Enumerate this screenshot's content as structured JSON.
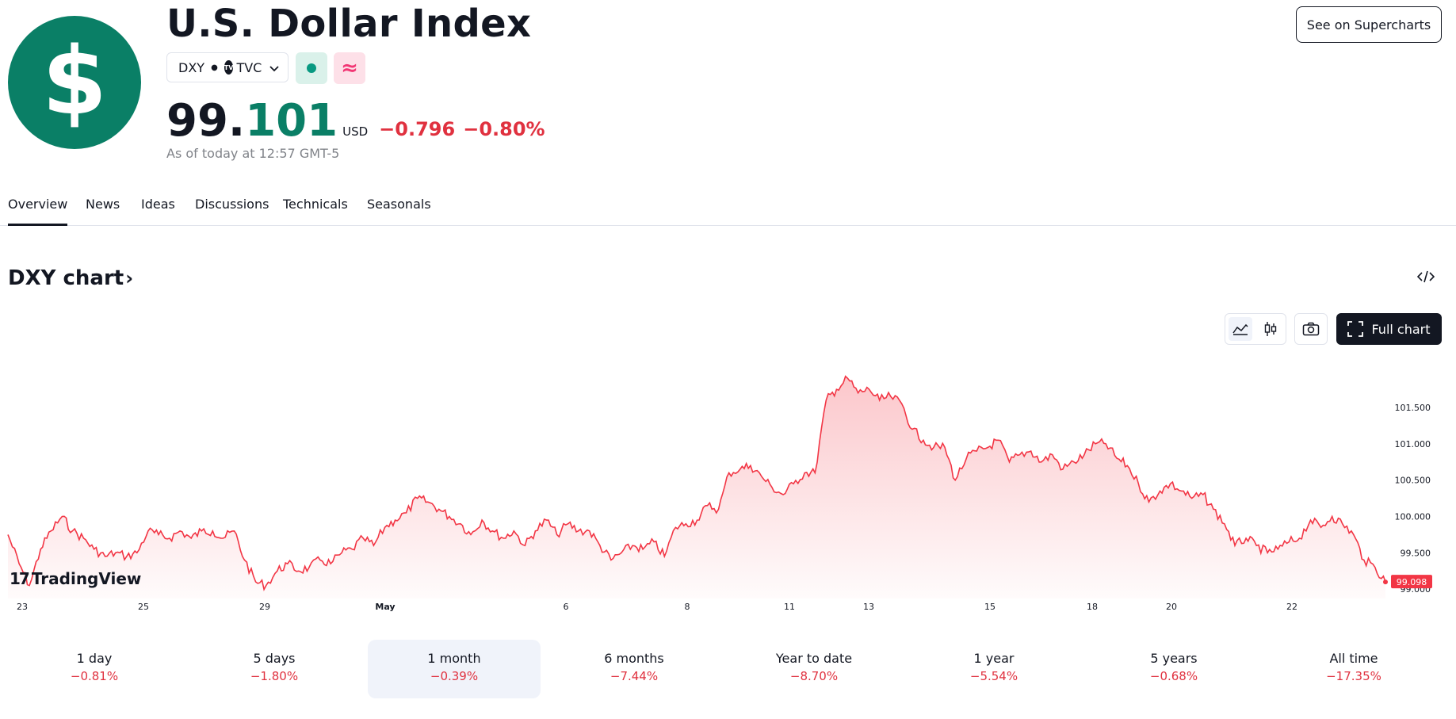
{
  "header": {
    "logo_glyph": "$",
    "title": "U.S. Dollar Index",
    "symbol": "DXY",
    "exchange_logo": "TV",
    "exchange": "TVC",
    "pink_badge": "≈",
    "price_int": "99.",
    "price_dec": "101",
    "currency": "USD",
    "change": "−0.796",
    "change_pct": "−0.80%",
    "as_of": "As of today at 12:57 GMT-5",
    "supercharts_label": "See on Supercharts"
  },
  "tabs": [
    {
      "label": "Overview"
    },
    {
      "label": "News"
    },
    {
      "label": "Ideas"
    },
    {
      "label": "Discussions"
    },
    {
      "label": "Technicals"
    },
    {
      "label": "Seasonals"
    }
  ],
  "chart_section": {
    "title": "DXY chart",
    "full_chart_label": "Full chart",
    "watermark": "TradingView",
    "watermark_logo": "17"
  },
  "chart_data": {
    "type": "area",
    "series": [
      {
        "last_value": "99.098",
        "points": [
          [
            0,
            99.75
          ],
          [
            14,
            99.35
          ],
          [
            27,
            99.05
          ],
          [
            41,
            99.55
          ],
          [
            54,
            99.8
          ],
          [
            68,
            100.0
          ],
          [
            81,
            99.8
          ],
          [
            95,
            99.7
          ],
          [
            108,
            99.55
          ],
          [
            122,
            99.45
          ],
          [
            135,
            99.5
          ],
          [
            149,
            99.45
          ],
          [
            162,
            99.5
          ],
          [
            176,
            99.8
          ],
          [
            189,
            99.75
          ],
          [
            203,
            99.7
          ],
          [
            216,
            99.8
          ],
          [
            230,
            99.7
          ],
          [
            243,
            99.8
          ],
          [
            257,
            99.8
          ],
          [
            270,
            99.7
          ],
          [
            284,
            99.8
          ],
          [
            297,
            99.4
          ],
          [
            311,
            99.1
          ],
          [
            324,
            99.05
          ],
          [
            338,
            99.25
          ],
          [
            351,
            99.35
          ],
          [
            365,
            99.25
          ],
          [
            378,
            99.3
          ],
          [
            392,
            99.4
          ],
          [
            405,
            99.35
          ],
          [
            419,
            99.5
          ],
          [
            432,
            99.55
          ],
          [
            446,
            99.7
          ],
          [
            459,
            99.6
          ],
          [
            473,
            99.85
          ],
          [
            486,
            99.95
          ],
          [
            500,
            100.05
          ],
          [
            514,
            100.25
          ],
          [
            527,
            100.2
          ],
          [
            541,
            100.1
          ],
          [
            554,
            100.0
          ],
          [
            568,
            99.9
          ],
          [
            581,
            99.75
          ],
          [
            595,
            99.95
          ],
          [
            608,
            99.8
          ],
          [
            622,
            99.7
          ],
          [
            635,
            99.8
          ],
          [
            649,
            99.6
          ],
          [
            662,
            99.8
          ],
          [
            676,
            99.95
          ],
          [
            689,
            99.75
          ],
          [
            703,
            99.9
          ],
          [
            716,
            99.8
          ],
          [
            730,
            99.8
          ],
          [
            743,
            99.6
          ],
          [
            757,
            99.4
          ],
          [
            770,
            99.5
          ],
          [
            784,
            99.6
          ],
          [
            797,
            99.55
          ],
          [
            811,
            99.65
          ],
          [
            824,
            99.45
          ],
          [
            838,
            99.85
          ],
          [
            851,
            99.9
          ],
          [
            865,
            99.95
          ],
          [
            878,
            100.15
          ],
          [
            892,
            100.1
          ],
          [
            905,
            100.6
          ],
          [
            919,
            100.65
          ],
          [
            932,
            100.7
          ],
          [
            946,
            100.55
          ],
          [
            959,
            100.4
          ],
          [
            973,
            100.3
          ],
          [
            986,
            100.45
          ],
          [
            1000,
            100.6
          ],
          [
            1013,
            100.6
          ],
          [
            1027,
            101.6
          ],
          [
            1040,
            101.75
          ],
          [
            1054,
            101.9
          ],
          [
            1067,
            101.7
          ],
          [
            1081,
            101.75
          ],
          [
            1094,
            101.6
          ],
          [
            1108,
            101.65
          ],
          [
            1122,
            101.55
          ],
          [
            1135,
            101.2
          ],
          [
            1149,
            101.05
          ],
          [
            1162,
            100.95
          ],
          [
            1176,
            100.95
          ],
          [
            1189,
            100.5
          ],
          [
            1203,
            100.8
          ],
          [
            1216,
            100.9
          ],
          [
            1230,
            100.95
          ],
          [
            1243,
            101.05
          ],
          [
            1257,
            100.75
          ],
          [
            1270,
            100.85
          ],
          [
            1284,
            100.9
          ],
          [
            1297,
            100.75
          ],
          [
            1311,
            100.85
          ],
          [
            1324,
            100.65
          ],
          [
            1338,
            100.75
          ],
          [
            1351,
            100.85
          ],
          [
            1365,
            101.0
          ],
          [
            1378,
            101.0
          ],
          [
            1392,
            100.8
          ],
          [
            1405,
            100.7
          ],
          [
            1419,
            100.45
          ],
          [
            1432,
            100.2
          ],
          [
            1446,
            100.35
          ],
          [
            1459,
            100.45
          ],
          [
            1473,
            100.35
          ],
          [
            1486,
            100.25
          ],
          [
            1500,
            100.3
          ],
          [
            1513,
            100.1
          ],
          [
            1527,
            99.9
          ],
          [
            1540,
            99.6
          ],
          [
            1554,
            99.7
          ],
          [
            1567,
            99.6
          ],
          [
            1581,
            99.5
          ],
          [
            1594,
            99.55
          ],
          [
            1608,
            99.65
          ],
          [
            1621,
            99.7
          ],
          [
            1635,
            99.95
          ],
          [
            1648,
            99.85
          ],
          [
            1662,
            100.0
          ],
          [
            1675,
            99.9
          ],
          [
            1689,
            99.75
          ],
          [
            1702,
            99.4
          ],
          [
            1716,
            99.3
          ],
          [
            1729,
            99.1
          ]
        ]
      }
    ],
    "y_ticks": [
      "101.500",
      "101.000",
      "100.500",
      "100.000",
      "99.500",
      "99.000"
    ],
    "x_ticks": [
      "23",
      "25",
      "29",
      "May",
      "6",
      "8",
      "11",
      "13",
      "15",
      "18",
      "20",
      "22"
    ],
    "ylim": [
      98.98,
      101.98
    ],
    "line_color": "#f23645"
  },
  "periods": [
    {
      "label": "1 day",
      "value": "−0.81%"
    },
    {
      "label": "5 days",
      "value": "−1.80%"
    },
    {
      "label": "1 month",
      "value": "−0.39%"
    },
    {
      "label": "6 months",
      "value": "−7.44%"
    },
    {
      "label": "Year to date",
      "value": "−8.70%"
    },
    {
      "label": "1 year",
      "value": "−5.54%"
    },
    {
      "label": "5 years",
      "value": "−0.68%"
    },
    {
      "label": "All time",
      "value": "−17.35%"
    }
  ],
  "colors": {
    "accent_green": "#0a7f66",
    "negative_red": "#e0313f"
  }
}
